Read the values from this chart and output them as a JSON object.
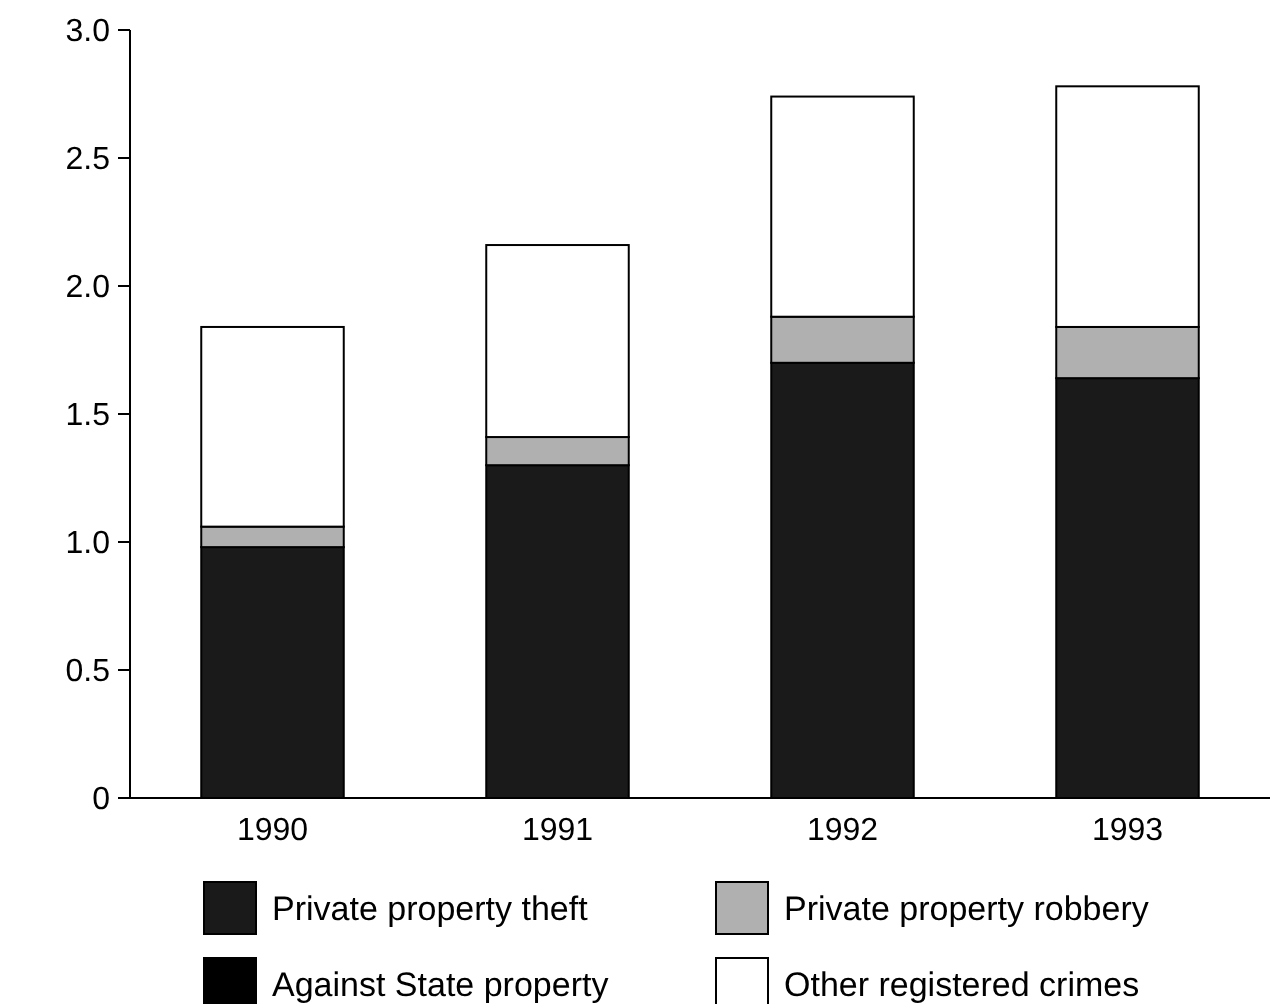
{
  "chart_data": {
    "type": "bar",
    "stacked": true,
    "categories": [
      "1990",
      "1991",
      "1992",
      "1993"
    ],
    "series": [
      {
        "name": "Private property theft",
        "color": "#1a1a1a",
        "values": [
          0.98,
          1.3,
          1.7,
          1.64
        ]
      },
      {
        "name": "Against State property",
        "color": "#000000",
        "values": [
          null,
          null,
          null,
          null
        ]
      },
      {
        "name": "Private property robbery",
        "color": "#b0b0b0",
        "values": [
          0.08,
          0.11,
          0.18,
          0.2
        ]
      },
      {
        "name": "Other registered crimes",
        "color": "#ffffff",
        "values": [
          0.78,
          0.75,
          0.86,
          0.94
        ]
      }
    ],
    "ylim": [
      0,
      3
    ],
    "yticks": [
      {
        "value": 0,
        "label": "0"
      },
      {
        "value": 0.5,
        "label": "0.5"
      },
      {
        "value": 1,
        "label": "1.0"
      },
      {
        "value": 1.5,
        "label": "1.5"
      },
      {
        "value": 2,
        "label": "2.0"
      },
      {
        "value": 2.5,
        "label": "2.5"
      },
      {
        "value": 3,
        "label": "3.0"
      }
    ],
    "grid": false,
    "legend": "bottom"
  }
}
